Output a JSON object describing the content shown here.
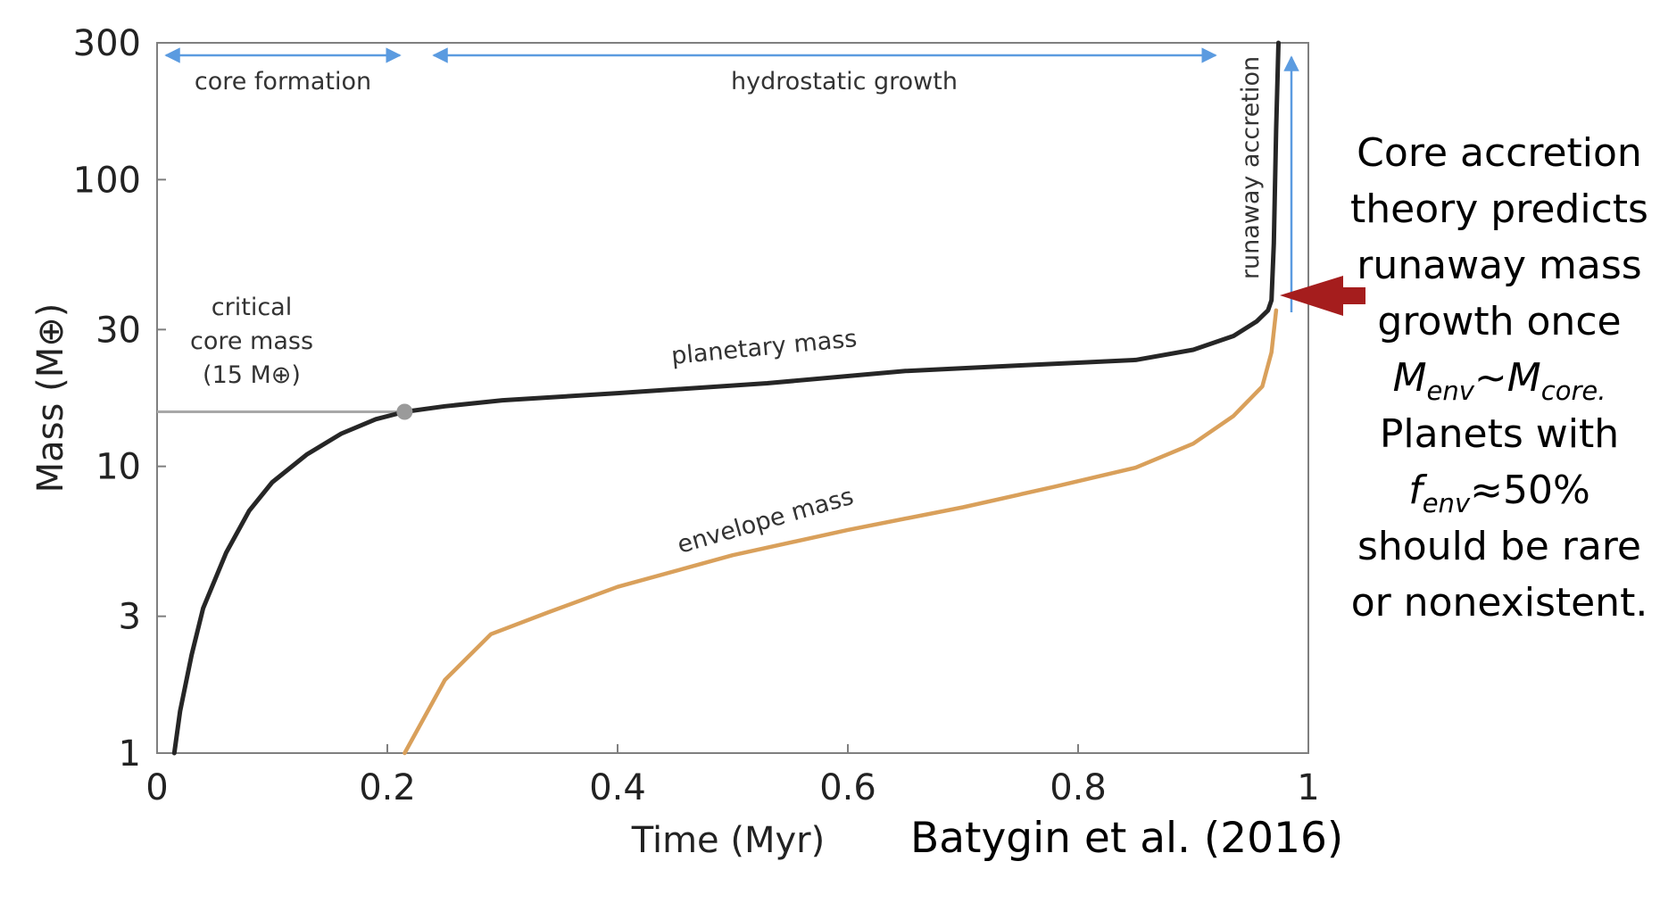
{
  "chart_data": {
    "type": "line",
    "title": "",
    "xlabel": "Time (Myr)",
    "ylabel": "Mass (M⊕)",
    "xlim": [
      0,
      1
    ],
    "ylim": [
      1,
      300
    ],
    "yscale": "log",
    "grid": false,
    "xticks": [
      {
        "value": 0,
        "label": "0"
      },
      {
        "value": 0.2,
        "label": "0.2"
      },
      {
        "value": 0.4,
        "label": "0.4"
      },
      {
        "value": 0.6,
        "label": "0.6"
      },
      {
        "value": 0.8,
        "label": "0.8"
      },
      {
        "value": 1,
        "label": "1"
      }
    ],
    "yticks": [
      {
        "value": 1,
        "label": "1"
      },
      {
        "value": 3,
        "label": "3"
      },
      {
        "value": 10,
        "label": "10"
      },
      {
        "value": 30,
        "label": "30"
      },
      {
        "value": 100,
        "label": "100"
      },
      {
        "value": 300,
        "label": "300"
      }
    ],
    "series": [
      {
        "name": "planetary mass",
        "color": "#262626",
        "x": [
          0.015,
          0.02,
          0.03,
          0.04,
          0.06,
          0.08,
          0.1,
          0.13,
          0.16,
          0.19,
          0.215,
          0.25,
          0.3,
          0.4,
          0.53,
          0.65,
          0.75,
          0.85,
          0.9,
          0.935,
          0.955,
          0.965,
          0.968,
          0.97,
          0.972,
          0.974
        ],
        "y": [
          1.0,
          1.4,
          2.2,
          3.2,
          5.0,
          7.0,
          8.8,
          11.0,
          13.0,
          14.6,
          15.5,
          16.2,
          17.0,
          18.0,
          19.5,
          21.5,
          22.5,
          23.5,
          25.5,
          28.5,
          32.0,
          35.0,
          38.0,
          60.0,
          150.0,
          300.0
        ]
      },
      {
        "name": "envelope mass",
        "color": "#D9A05B",
        "x": [
          0.215,
          0.25,
          0.29,
          0.34,
          0.4,
          0.5,
          0.6,
          0.7,
          0.78,
          0.85,
          0.9,
          0.935,
          0.96,
          0.968,
          0.972
        ],
        "y": [
          1.0,
          1.8,
          2.6,
          3.1,
          3.8,
          4.9,
          6.0,
          7.2,
          8.5,
          9.9,
          12.0,
          15.0,
          19.0,
          25.0,
          35.0
        ]
      }
    ],
    "critical_point": {
      "x": 0.215,
      "y": 15.5
    },
    "annotations": {
      "core_formation": "core formation",
      "hydrostatic_growth": "hydrostatic growth",
      "runaway_accretion": "runaway accretion",
      "critical_line1": "critical",
      "critical_line2": "core mass",
      "critical_line3": "(15 M⊕)",
      "planetary_label": "planetary mass",
      "envelope_label": "envelope mass"
    },
    "colors": {
      "phase_arrow": "#5B9BE0",
      "pointer_arrow": "#A51D1D",
      "reference_line": "#A8A8A8",
      "axis": "#7F7F7F"
    }
  },
  "side_text": {
    "line1": "Core accretion",
    "line2": "theory predicts",
    "line3": "runaway mass",
    "line4": "growth once",
    "m1": "M",
    "m1_sub": "env",
    "tilde": "~",
    "m2": "M",
    "m2_sub": "core.",
    "line6": "Planets with",
    "f": "f",
    "f_sub": "env",
    "f_rest": "≈50%",
    "line8": "should be rare",
    "line9": "or nonexistent."
  },
  "citation": "Batygin et al. (2016)"
}
